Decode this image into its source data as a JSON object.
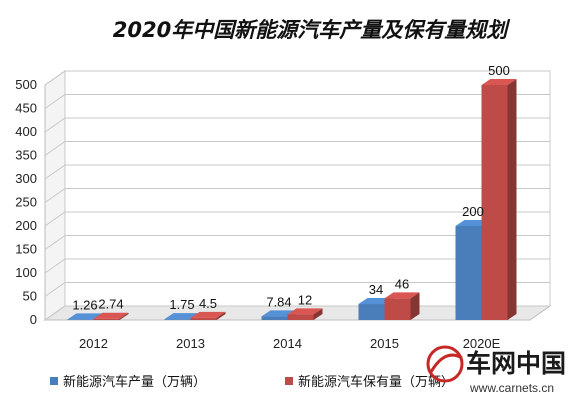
{
  "chart_data": {
    "type": "bar",
    "title": "2020年中国新能源汽车产量及保有量规划",
    "categories": [
      "2012",
      "2013",
      "2014",
      "2015",
      "2020E"
    ],
    "series": [
      {
        "name": "新能源汽车产量（万辆）",
        "values": [
          1.26,
          1.75,
          7.84,
          34,
          200
        ],
        "color": "#4a7ebb"
      },
      {
        "name": "新能源汽车保有量（万辆）",
        "values": [
          2.74,
          4.5,
          12,
          46,
          500
        ],
        "color": "#be4b48"
      }
    ],
    "ylim": [
      0,
      500
    ],
    "yticks": [
      0,
      50,
      100,
      150,
      200,
      250,
      300,
      350,
      400,
      450,
      500
    ],
    "xlabel": "",
    "ylabel": "",
    "grid": true,
    "legend_position": "bottom",
    "three_d": true
  },
  "watermark": {
    "text": "车网中国",
    "url": "www.carnets.cn"
  }
}
